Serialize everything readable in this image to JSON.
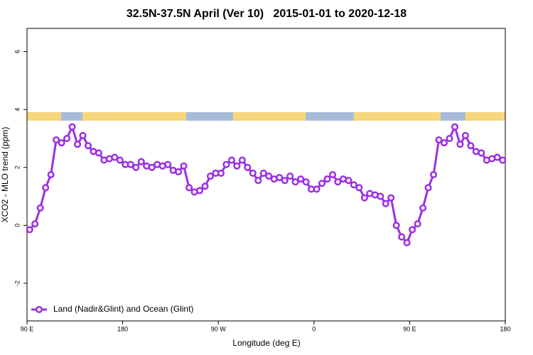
{
  "chart_data": {
    "type": "line",
    "title": "32.5N-37.5N April (Ver 10)   2015-01-01 to 2020-12-18",
    "xlabel": "Longitude (deg E)",
    "ylabel": "XCO2 - MLO trend (ppm)",
    "xlim": [
      90,
      540
    ],
    "ylim": [
      -3.3,
      6.8
    ],
    "xticks": [
      {
        "value": 90,
        "label": "90 E"
      },
      180,
      {
        "value": 270,
        "label": "90 W"
      },
      {
        "value": 360,
        "label": "0"
      },
      {
        "value": 450,
        "label": "90 E"
      },
      {
        "value": 540,
        "label": "180"
      }
    ],
    "yticks": [
      -2,
      0,
      2,
      4,
      6
    ],
    "legend": "bottom-left",
    "x": [
      92.5,
      97.5,
      102.5,
      107.5,
      112.5,
      117.5,
      122.5,
      127.5,
      132.5,
      137.5,
      142.5,
      147.5,
      152.5,
      157.5,
      162.5,
      167.5,
      172.5,
      177.5,
      182.5,
      187.5,
      192.5,
      197.5,
      202.5,
      207.5,
      212.5,
      217.5,
      222.5,
      227.5,
      232.5,
      237.5,
      242.5,
      247.5,
      252.5,
      257.5,
      262.5,
      267.5,
      272.5,
      277.5,
      282.5,
      287.5,
      292.5,
      297.5,
      302.5,
      307.5,
      312.5,
      317.5,
      322.5,
      327.5,
      332.5,
      337.5,
      342.5,
      347.5,
      352.5,
      357.5,
      362.5,
      367.5,
      372.5,
      377.5,
      382.5,
      387.5,
      392.5,
      397.5,
      402.5,
      407.5,
      412.5,
      417.5,
      422.5,
      427.5,
      432.5,
      437.5,
      442.5,
      447.5,
      452.5,
      457.5,
      462.5,
      467.5,
      472.5,
      477.5,
      482.5,
      487.5,
      492.5,
      497.5,
      502.5,
      507.5,
      512.5,
      517.5,
      522.5,
      527.5,
      532.5,
      537.5
    ],
    "series": [
      {
        "name": "Land (Nadir&Glint) and Ocean (Glint)",
        "color": "#9b30e0",
        "values": [
          -0.15,
          0.05,
          0.6,
          1.3,
          1.75,
          2.95,
          2.85,
          3.0,
          3.4,
          2.8,
          3.1,
          2.75,
          2.55,
          2.5,
          2.25,
          2.3,
          2.35,
          2.25,
          2.1,
          2.1,
          2.0,
          2.2,
          2.05,
          2.0,
          2.1,
          2.05,
          2.1,
          1.9,
          1.85,
          2.05,
          1.3,
          1.15,
          1.2,
          1.35,
          1.7,
          1.8,
          1.8,
          2.1,
          2.25,
          2.05,
          2.25,
          2.0,
          1.8,
          1.55,
          1.8,
          1.7,
          1.6,
          1.65,
          1.55,
          1.7,
          1.5,
          1.6,
          1.5,
          1.25,
          1.25,
          1.45,
          1.6,
          1.75,
          1.5,
          1.6,
          1.55,
          1.4,
          1.3,
          0.95,
          1.1,
          1.05,
          1.0,
          0.75,
          0.95,
          0.0,
          -0.4,
          -0.6,
          -0.15,
          0.05,
          0.6,
          1.3,
          1.75,
          2.95,
          2.85,
          3.0,
          3.4,
          2.8,
          3.1,
          2.75,
          2.55,
          2.5,
          2.25,
          2.3,
          2.35,
          2.25
        ]
      }
    ]
  }
}
